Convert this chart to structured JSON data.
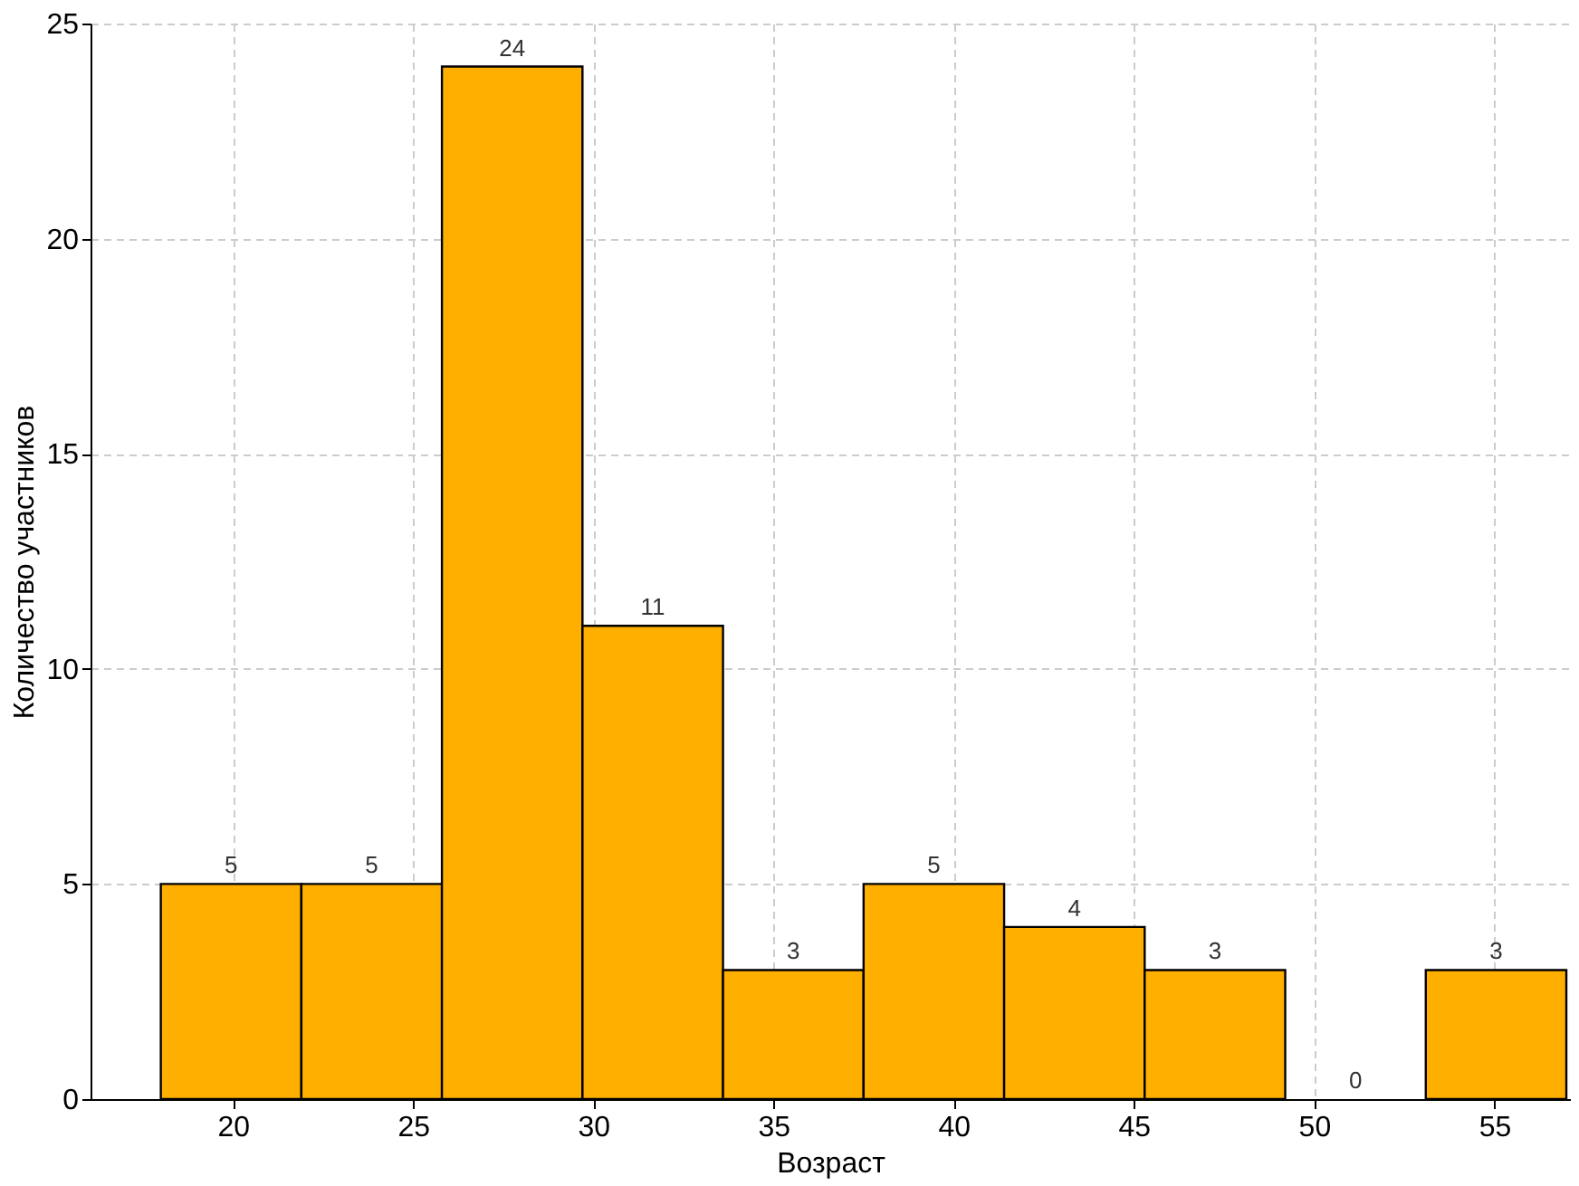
{
  "chart_data": {
    "type": "histogram",
    "xlabel": "Возраст",
    "ylabel": "Количество участников",
    "bins": [
      18,
      21.9,
      25.8,
      29.7,
      33.6,
      37.5,
      41.4,
      45.3,
      49.2,
      53.1,
      57
    ],
    "values": [
      5,
      5,
      24,
      11,
      3,
      5,
      4,
      3,
      0,
      3
    ],
    "color": "#ffaf00",
    "data_labels": true,
    "xlim": [
      16.05,
      57.1
    ],
    "xticks": [
      20,
      25,
      30,
      35,
      40,
      45,
      50,
      55
    ],
    "ylim": [
      0,
      25
    ],
    "yticks": [
      0,
      5,
      10,
      15,
      20,
      25
    ],
    "grid": true,
    "line_style": "dashed"
  }
}
